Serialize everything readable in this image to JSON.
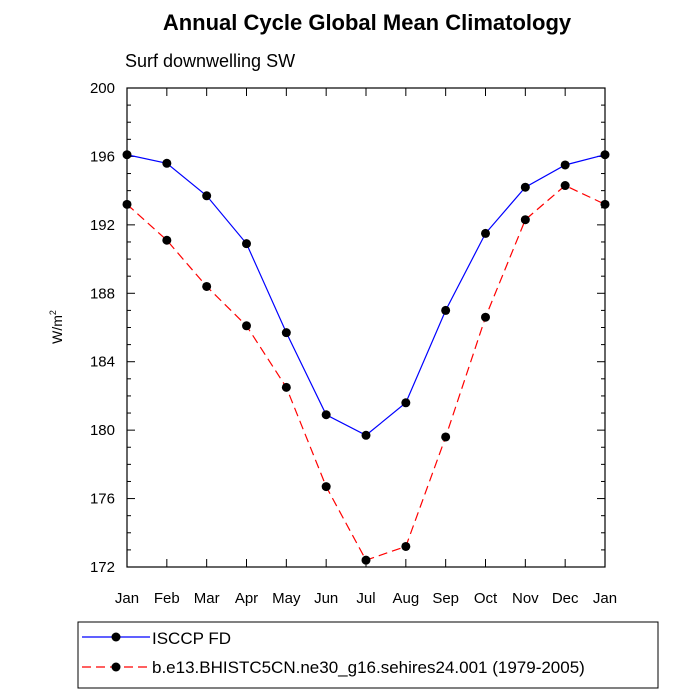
{
  "chart_data": {
    "type": "line",
    "title": "Annual Cycle Global Mean Climatology",
    "subtitle": "Surf downwelling SW",
    "ylabel": "W/m",
    "ylabel_sup": "2",
    "xlabel": "",
    "categories": [
      "Jan",
      "Feb",
      "Mar",
      "Apr",
      "May",
      "Jun",
      "Jul",
      "Aug",
      "Sep",
      "Oct",
      "Nov",
      "Dec",
      "Jan"
    ],
    "ylim": [
      172,
      200
    ],
    "yticks": [
      172,
      176,
      180,
      184,
      188,
      192,
      196,
      200
    ],
    "series": [
      {
        "name": "ISCCP FD",
        "color": "#0000ff",
        "dash": "solid",
        "values": [
          196.1,
          195.6,
          193.7,
          190.9,
          185.7,
          180.9,
          179.7,
          181.6,
          187.0,
          191.5,
          194.2,
          195.5,
          196.1
        ]
      },
      {
        "name": "b.e13.BHISTC5CN.ne30_g16.sehires24.001 (1979-2005)",
        "color": "#ff0000",
        "dash": "dashed",
        "values": [
          193.2,
          191.1,
          188.4,
          186.1,
          182.5,
          176.7,
          172.4,
          173.2,
          179.6,
          186.6,
          192.3,
          194.3,
          193.2
        ]
      }
    ]
  }
}
